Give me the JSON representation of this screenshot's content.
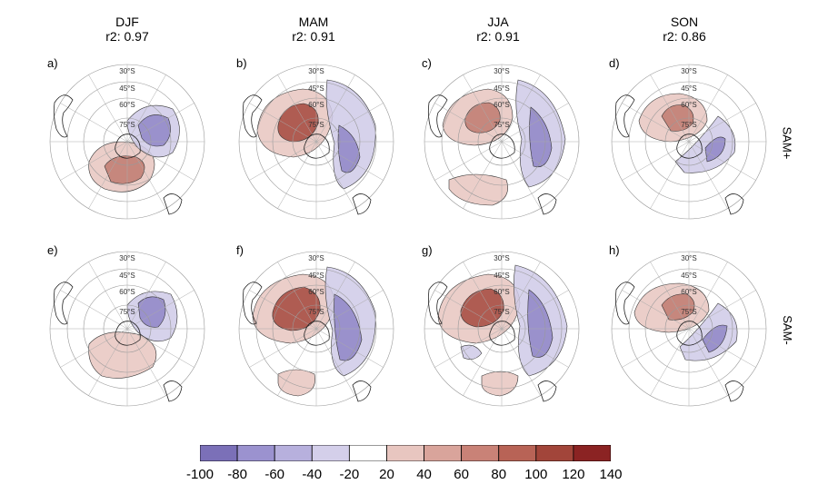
{
  "columns": [
    {
      "season": "DJF",
      "r2": "r2: 0.97"
    },
    {
      "season": "MAM",
      "r2": "r2: 0.91"
    },
    {
      "season": "JJA",
      "r2": "r2: 0.91"
    },
    {
      "season": "SON",
      "r2": "r2: 0.86"
    }
  ],
  "rows": [
    "SAM+",
    "SAM-"
  ],
  "panel_labels": [
    "a)",
    "b)",
    "c)",
    "d)",
    "e)",
    "f)",
    "g)",
    "h)"
  ],
  "latitude_labels": [
    "30°S",
    "45°S",
    "60°S",
    "75°S"
  ],
  "colorbar": {
    "ticks": [
      "-100",
      "-80",
      "-60",
      "-40",
      "-20",
      "20",
      "40",
      "60",
      "80",
      "100",
      "120",
      "140"
    ],
    "colors": [
      "#7b70b8",
      "#9b92cf",
      "#b7b0dd",
      "#d4cfea",
      "#ffffff",
      "#e8c6c0",
      "#d9a49b",
      "#c98277",
      "#b86356",
      "#a2453a",
      "#8b2323"
    ]
  }
}
